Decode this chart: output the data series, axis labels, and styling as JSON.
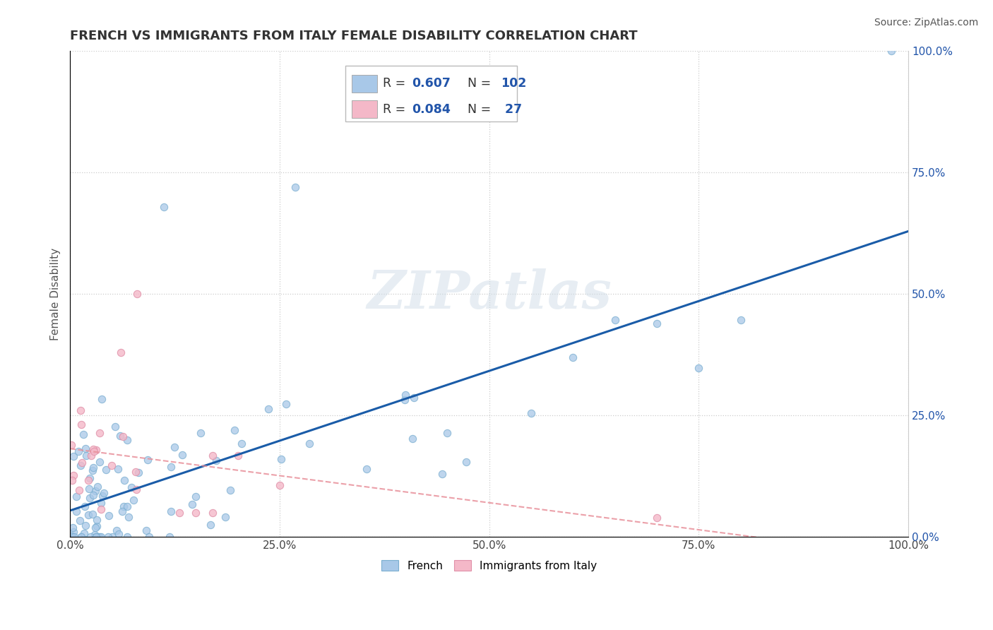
{
  "title": "FRENCH VS IMMIGRANTS FROM ITALY FEMALE DISABILITY CORRELATION CHART",
  "source": "Source: ZipAtlas.com",
  "ylabel": "Female Disability",
  "watermark": "ZIPatlas",
  "legend_french_R": "0.607",
  "legend_french_N": "102",
  "legend_italy_R": "0.084",
  "legend_italy_N": "27",
  "french_color": "#a8c8e8",
  "italy_color": "#f4b8c8",
  "french_line_color": "#1a5ca8",
  "italy_line_color": "#e8909a",
  "background_color": "#ffffff",
  "grid_color": "#cccccc",
  "blue_text_color": "#2255aa",
  "xlim": [
    0.0,
    1.0
  ],
  "ylim": [
    0.0,
    1.0
  ],
  "xticks": [
    0.0,
    0.25,
    0.5,
    0.75,
    1.0
  ],
  "xtick_labels": [
    "0.0%",
    "25.0%",
    "50.0%",
    "75.0%",
    "100.0%"
  ],
  "ytick_labels": [
    "",
    "",
    "",
    "",
    ""
  ],
  "yticks": [
    0.0,
    0.25,
    0.5,
    0.75,
    1.0
  ],
  "right_ytick_labels": [
    "0.0%",
    "25.0%",
    "50.0%",
    "75.0%",
    "100.0%"
  ]
}
